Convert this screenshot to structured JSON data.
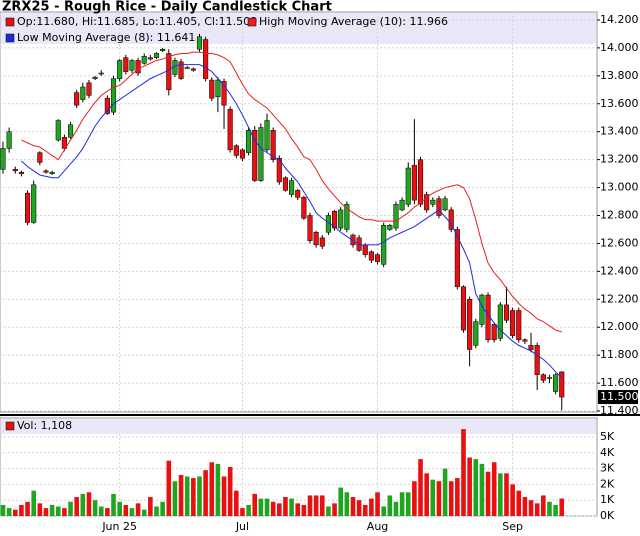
{
  "chart_data": {
    "type": "candlestick",
    "title": "ZRX25 - Rough Rice - Daily Candlestick Chart",
    "ohlc_label": "Op:11.680, Hi:11.685, Lo:11.405, Cl:11.500",
    "up_color": "#1fa51f",
    "down_color": "#e81010",
    "open": [
      13.13,
      13.28,
      13.13,
      13.11,
      12.96,
      12.75,
      13.25,
      13.12,
      13.1,
      13.34,
      13.36,
      13.36,
      13.68,
      13.63,
      13.75,
      13.78,
      13.82,
      13.64,
      13.54,
      13.78,
      13.93,
      13.84,
      13.91,
      13.89,
      13.93,
      13.93,
      13.98,
      13.96,
      13.81,
      13.9,
      13.86,
      13.85,
      13.99,
      14.06,
      13.77,
      13.65,
      13.76,
      13.56,
      13.3,
      13.27,
      13.25,
      13.41,
      13.05,
      13.27,
      13.41,
      13.21,
      13.07,
      12.95,
      12.98,
      12.93,
      12.8,
      12.68,
      12.64,
      12.68,
      12.83,
      12.71,
      12.7,
      12.66,
      12.64,
      12.59,
      12.54,
      12.52,
      12.45,
      12.7,
      12.71,
      12.84,
      12.88,
      13.16,
      13.2,
      12.95,
      12.88,
      12.92,
      12.84,
      12.84,
      12.7,
      12.29,
      12.2,
      11.87,
      12.02,
      12.23,
      12.02,
      11.92,
      12.16,
      12.12,
      12.12,
      11.91,
      11.87,
      11.87,
      11.66,
      11.64,
      11.54,
      11.68
    ],
    "high": [
      13.33,
      13.43,
      13.15,
      13.12,
      12.98,
      13.05,
      13.26,
      13.13,
      13.12,
      13.49,
      13.38,
      13.47,
      13.7,
      13.75,
      13.77,
      13.8,
      13.84,
      13.66,
      13.8,
      13.92,
      13.95,
      13.92,
      13.93,
      13.96,
      13.95,
      13.97,
      14.0,
      13.99,
      13.93,
      13.92,
      13.87,
      13.86,
      14.1,
      14.08,
      13.79,
      13.79,
      13.78,
      13.58,
      13.31,
      13.28,
      13.43,
      13.44,
      13.46,
      13.53,
      13.43,
      13.23,
      13.08,
      13.07,
      12.99,
      12.94,
      12.82,
      12.69,
      12.66,
      12.82,
      12.84,
      12.86,
      12.9,
      12.67,
      12.66,
      12.6,
      12.55,
      12.53,
      12.75,
      12.74,
      12.9,
      12.93,
      13.18,
      13.49,
      13.22,
      12.97,
      12.93,
      12.94,
      12.94,
      12.86,
      12.72,
      12.3,
      12.22,
      12.06,
      12.24,
      12.25,
      12.03,
      12.18,
      12.29,
      12.14,
      12.14,
      11.92,
      11.96,
      11.89,
      11.67,
      11.66,
      11.67,
      11.685
    ],
    "low": [
      13.1,
      13.25,
      13.1,
      13.08,
      12.73,
      12.74,
      13.16,
      13.1,
      13.09,
      13.33,
      13.26,
      13.35,
      13.57,
      13.61,
      13.64,
      13.77,
      13.8,
      13.52,
      13.52,
      13.76,
      13.81,
      13.82,
      13.8,
      13.88,
      13.91,
      13.92,
      13.97,
      13.66,
      13.79,
      13.77,
      13.85,
      13.83,
      13.97,
      13.76,
      13.62,
      13.54,
      13.42,
      13.25,
      13.21,
      13.19,
      13.23,
      13.04,
      13.04,
      13.25,
      13.18,
      13.02,
      12.97,
      12.93,
      12.91,
      12.77,
      12.6,
      12.57,
      12.56,
      12.66,
      12.69,
      12.69,
      12.68,
      12.57,
      12.54,
      12.5,
      12.46,
      12.45,
      12.43,
      12.69,
      12.69,
      12.83,
      12.86,
      12.88,
      12.86,
      12.82,
      12.86,
      12.78,
      12.83,
      12.68,
      12.27,
      11.96,
      11.72,
      11.85,
      12.0,
      11.89,
      11.89,
      11.9,
      12.03,
      11.92,
      11.89,
      11.88,
      11.82,
      11.55,
      11.6,
      11.6,
      11.52,
      11.405
    ],
    "close": [
      13.28,
      13.4,
      13.12,
      13.1,
      12.75,
      13.02,
      13.18,
      13.11,
      13.11,
      13.48,
      13.28,
      13.45,
      13.59,
      13.72,
      13.66,
      13.79,
      13.82,
      13.53,
      13.78,
      13.91,
      13.83,
      13.91,
      13.82,
      13.94,
      13.92,
      13.96,
      13.99,
      13.7,
      13.91,
      13.78,
      13.86,
      13.84,
      14.08,
      13.78,
      13.64,
      13.77,
      13.59,
      13.27,
      13.23,
      13.21,
      13.41,
      13.05,
      13.43,
      13.48,
      13.2,
      13.04,
      12.98,
      13.05,
      12.93,
      12.78,
      12.62,
      12.59,
      12.58,
      12.8,
      12.71,
      12.84,
      12.88,
      12.59,
      12.55,
      12.52,
      12.48,
      12.47,
      12.73,
      12.73,
      12.88,
      12.91,
      13.14,
      12.91,
      12.88,
      12.84,
      12.91,
      12.8,
      12.92,
      12.7,
      12.29,
      11.98,
      11.84,
      12.04,
      12.23,
      11.91,
      11.91,
      12.16,
      12.05,
      11.94,
      11.91,
      11.9,
      11.84,
      11.66,
      11.62,
      11.64,
      11.66,
      11.5
    ],
    "last_label": "11.500",
    "series": [
      {
        "name": "High Moving Average (10): 11.966",
        "color": "#e82020",
        "values": [
          null,
          null,
          null,
          13.34,
          13.32,
          13.3,
          13.29,
          13.26,
          13.23,
          13.2,
          13.27,
          13.34,
          13.41,
          13.49,
          13.55,
          13.61,
          13.66,
          13.69,
          13.72,
          13.73,
          13.77,
          13.81,
          13.85,
          13.87,
          13.89,
          13.91,
          13.92,
          13.94,
          13.95,
          13.96,
          13.96,
          13.97,
          13.97,
          13.96,
          13.96,
          13.95,
          13.93,
          13.9,
          13.82,
          13.74,
          13.67,
          13.63,
          13.6,
          13.57,
          13.52,
          13.47,
          13.42,
          13.35,
          13.29,
          13.22,
          13.2,
          13.13,
          13.05,
          12.99,
          12.94,
          12.89,
          12.85,
          12.82,
          12.79,
          12.77,
          12.77,
          12.76,
          12.76,
          12.76,
          12.76,
          12.79,
          12.82,
          12.86,
          12.89,
          12.93,
          12.96,
          12.98,
          13.0,
          13.01,
          13.02,
          13.0,
          12.92,
          12.77,
          12.6,
          12.46,
          12.39,
          12.34,
          12.28,
          12.22,
          12.17,
          12.13,
          12.1,
          12.06,
          12.04,
          12.01,
          11.98,
          11.966
        ]
      },
      {
        "name": "Low Moving Average (8): 11.641",
        "color": "#1a2ee0",
        "values": [
          null,
          null,
          null,
          13.19,
          13.15,
          13.12,
          13.09,
          13.08,
          13.07,
          13.07,
          13.12,
          13.17,
          13.22,
          13.28,
          13.36,
          13.44,
          13.5,
          13.55,
          13.6,
          13.63,
          13.66,
          13.69,
          13.72,
          13.75,
          13.78,
          13.8,
          13.82,
          13.84,
          13.87,
          13.88,
          13.88,
          13.88,
          13.88,
          13.86,
          13.83,
          13.78,
          13.73,
          13.67,
          13.6,
          13.52,
          13.43,
          13.34,
          13.28,
          13.25,
          13.22,
          13.2,
          13.14,
          13.09,
          13.04,
          12.97,
          12.9,
          12.82,
          12.78,
          12.75,
          12.72,
          12.68,
          12.65,
          12.62,
          12.59,
          12.59,
          12.59,
          12.59,
          12.61,
          12.64,
          12.66,
          12.68,
          12.7,
          12.72,
          12.75,
          12.78,
          12.81,
          12.84,
          12.79,
          12.74,
          12.65,
          12.56,
          12.46,
          12.24,
          12.15,
          12.09,
          12.03,
          11.98,
          11.94,
          11.9,
          11.87,
          11.85,
          11.83,
          11.8,
          11.77,
          11.73,
          11.68,
          11.641
        ]
      }
    ],
    "ylim": [
      11.393,
      14.257
    ],
    "yticks": [
      {
        "value": 11.4,
        "label": "11.400"
      },
      {
        "value": 11.6,
        "label": "11.600"
      },
      {
        "value": 11.8,
        "label": "11.800"
      },
      {
        "value": 12.0,
        "label": "12.000"
      },
      {
        "value": 12.2,
        "label": "12.200"
      },
      {
        "value": 12.4,
        "label": "12.400"
      },
      {
        "value": 12.6,
        "label": "12.600"
      },
      {
        "value": 12.8,
        "label": "12.800"
      },
      {
        "value": 13.0,
        "label": "13.000"
      },
      {
        "value": 13.2,
        "label": "13.200"
      },
      {
        "value": 13.4,
        "label": "13.400"
      },
      {
        "value": 13.6,
        "label": "13.600"
      },
      {
        "value": 13.8,
        "label": "13.800"
      },
      {
        "value": 14.0,
        "label": "14.000"
      },
      {
        "value": 14.2,
        "label": "14.200"
      }
    ],
    "xticks": [
      {
        "value": 19,
        "label": "Jun 25"
      },
      {
        "value": 39,
        "label": "Jul"
      },
      {
        "value": 61,
        "label": "Aug"
      },
      {
        "value": 83,
        "label": "Sep"
      }
    ],
    "volume_label": "Vol: 1,108",
    "volume": [
      700,
      500,
      400,
      700,
      900,
      1600,
      800,
      500,
      700,
      600,
      500,
      900,
      1200,
      1400,
      1500,
      1000,
      600,
      500,
      1400,
      900,
      700,
      500,
      800,
      400,
      1200,
      600,
      900,
      3500,
      2200,
      2600,
      2500,
      2400,
      2500,
      2900,
      3400,
      3300,
      2500,
      3100,
      1600,
      500,
      700,
      1400,
      1100,
      1100,
      900,
      800,
      1200,
      1100,
      800,
      700,
      1300,
      1300,
      1300,
      600,
      800,
      1800,
      1500,
      1200,
      1000,
      700,
      1100,
      1500,
      600,
      1300,
      900,
      1500,
      1500,
      2200,
      3600,
      2700,
      2300,
      2200,
      3000,
      2200,
      2400,
      5500,
      3700,
      3600,
      3300,
      2800,
      3400,
      2700,
      2700,
      2000,
      1600,
      1200,
      1000,
      800,
      1300,
      900,
      700,
      1108
    ],
    "vol_ylim": [
      0,
      5600
    ],
    "vol_yticks": [
      {
        "value": 0,
        "label": "0K"
      },
      {
        "value": 1000,
        "label": "1K"
      },
      {
        "value": 2000,
        "label": "2K"
      },
      {
        "value": 3000,
        "label": "3K"
      },
      {
        "value": 4000,
        "label": "4K"
      },
      {
        "value": 5000,
        "label": "5K"
      }
    ],
    "grid": true
  }
}
